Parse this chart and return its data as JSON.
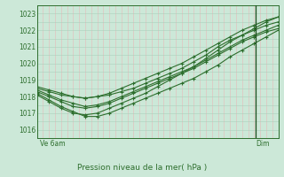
{
  "title": "Pression niveau de la mer( hPa )",
  "bg_color": "#cce8d8",
  "plot_bg_color": "#cce8d8",
  "line_color": "#2d6e2d",
  "grid_color_v": "#e8b8b8",
  "grid_color_h": "#aacfbc",
  "ylim": [
    1015.5,
    1023.5
  ],
  "yticks": [
    1016,
    1017,
    1018,
    1019,
    1020,
    1021,
    1022,
    1023
  ],
  "xlabel_left": "Ve 6am",
  "xlabel_right": "Dim",
  "series": [
    [
      1018.5,
      1018.3,
      1018.1,
      1018.0,
      1017.9,
      1018.0,
      1018.1,
      1018.3,
      1018.5,
      1018.8,
      1019.1,
      1019.4,
      1019.7,
      1020.1,
      1020.5,
      1021.0,
      1021.4,
      1021.7,
      1022.0,
      1022.3,
      1022.5
    ],
    [
      1018.3,
      1018.0,
      1017.7,
      1017.4,
      1017.3,
      1017.4,
      1017.6,
      1017.9,
      1018.2,
      1018.5,
      1018.8,
      1019.1,
      1019.4,
      1019.7,
      1020.1,
      1020.5,
      1020.9,
      1021.3,
      1021.6,
      1021.9,
      1022.1
    ],
    [
      1018.2,
      1017.8,
      1017.4,
      1017.1,
      1016.8,
      1016.8,
      1017.0,
      1017.3,
      1017.6,
      1017.9,
      1018.2,
      1018.5,
      1018.8,
      1019.1,
      1019.5,
      1019.9,
      1020.4,
      1020.8,
      1021.2,
      1021.6,
      1022.0
    ],
    [
      1018.4,
      1018.1,
      1017.8,
      1017.6,
      1017.4,
      1017.5,
      1017.7,
      1018.0,
      1018.3,
      1018.6,
      1018.9,
      1019.2,
      1019.5,
      1019.8,
      1020.2,
      1020.6,
      1021.0,
      1021.4,
      1021.7,
      1022.0,
      1022.3
    ],
    [
      1018.1,
      1017.7,
      1017.3,
      1017.0,
      1016.9,
      1017.0,
      1017.3,
      1017.6,
      1017.9,
      1018.2,
      1018.6,
      1019.0,
      1019.4,
      1019.8,
      1020.3,
      1020.8,
      1021.3,
      1021.7,
      1022.1,
      1022.5,
      1022.8
    ],
    [
      1018.6,
      1018.4,
      1018.2,
      1018.0,
      1017.9,
      1018.0,
      1018.2,
      1018.5,
      1018.8,
      1019.1,
      1019.4,
      1019.7,
      1020.0,
      1020.4,
      1020.8,
      1021.2,
      1021.6,
      1022.0,
      1022.3,
      1022.6,
      1022.8
    ]
  ],
  "n_points": 21,
  "vline_pos": 0.905,
  "marker": "+",
  "markersize": 3.5,
  "linewidth": 0.8,
  "n_vgrid": 40,
  "n_hgrid": 16
}
